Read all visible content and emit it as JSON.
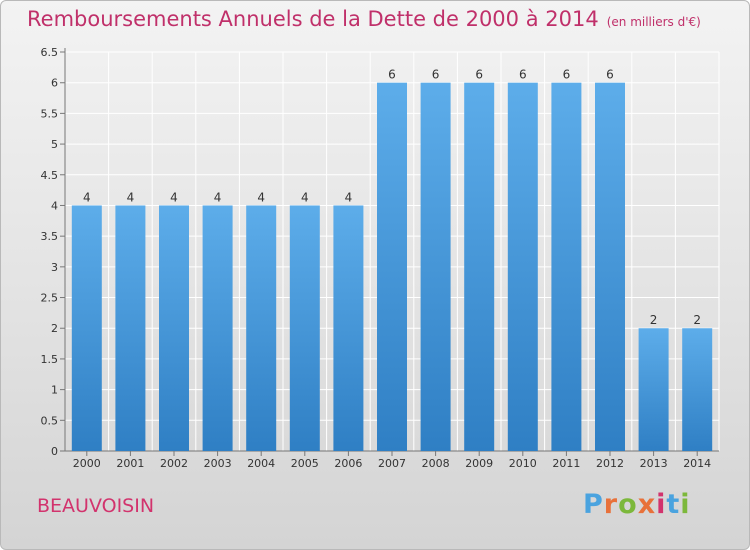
{
  "header": {
    "title": "Remboursements Annuels de la Dette de 2000 à 2014",
    "unit": "(en milliers d'€)"
  },
  "footer": {
    "town": "BEAUVOISIN",
    "logo": {
      "text": "Proxiti",
      "colors": [
        "#4aa3df",
        "#e8713a",
        "#7cb83b",
        "#e8713a",
        "#d2336d",
        "#4aa3df",
        "#7cb83b"
      ]
    }
  },
  "colors": {
    "bar_light": "#5dadea",
    "bar_dark": "#2f7fc4",
    "title": "#c0306a"
  },
  "chart_data": {
    "type": "bar",
    "title": "Remboursements Annuels de la Dette de 2000 à 2014",
    "categories": [
      "2000",
      "2001",
      "2002",
      "2003",
      "2004",
      "2005",
      "2006",
      "2007",
      "2008",
      "2009",
      "2010",
      "2011",
      "2012",
      "2013",
      "2014"
    ],
    "values": [
      4,
      4,
      4,
      4,
      4,
      4,
      4,
      6,
      6,
      6,
      6,
      6,
      6,
      2,
      2
    ],
    "data_labels": [
      "4",
      "4",
      "4",
      "4",
      "4",
      "4",
      "4",
      "6",
      "6",
      "6",
      "6",
      "6",
      "6",
      "2",
      "2"
    ],
    "ylim": [
      0,
      6.5
    ],
    "yticks": [
      0,
      0.5,
      1,
      1.5,
      2,
      2.5,
      3,
      3.5,
      4,
      4.5,
      5,
      5.5,
      6,
      6.5
    ],
    "ytick_labels": [
      "0",
      "0.5",
      "1",
      "1.5",
      "2",
      "2.5",
      "3",
      "3.5",
      "4",
      "4.5",
      "5",
      "5.5",
      "6",
      "6.5"
    ],
    "grid": true,
    "legend": "none"
  }
}
